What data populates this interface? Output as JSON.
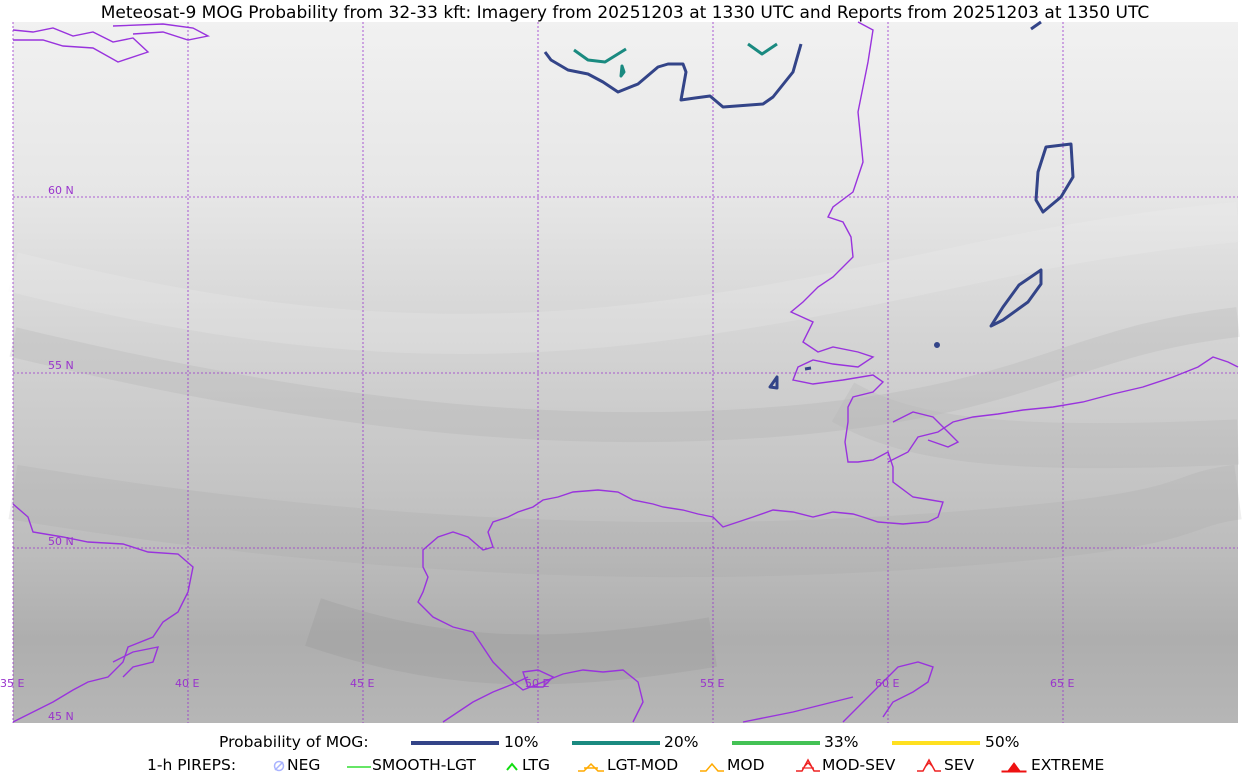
{
  "title": "Meteosat-9 MOG Probability from 32-33 kft: Imagery from 20251203 at 1330 UTC and Reports from 20251203 at 1350 UTC",
  "grid": {
    "lat_labels": [
      "60 N",
      "55 N",
      "50 N",
      "45 N"
    ],
    "lon_labels": [
      "35 E",
      "40 E",
      "45 E",
      "50 E",
      "55 E",
      "60 E",
      "65 E"
    ],
    "line_color": "#9933cc"
  },
  "coast_color": "#9933dd",
  "legend": {
    "probability": {
      "label": "Probability of MOG:",
      "items": [
        {
          "label": "10%",
          "color": "#334488"
        },
        {
          "label": "20%",
          "color": "#1a8a80"
        },
        {
          "label": "33%",
          "color": "#44c255"
        },
        {
          "label": "50%",
          "color": "#ffe020"
        }
      ]
    },
    "pireps": {
      "label": "1-h PIREPS:",
      "items": [
        {
          "label": "NEG",
          "color": "#aab4ff",
          "icon": "neg-icon"
        },
        {
          "label": "SMOOTH-LGT",
          "color": "#33dd33",
          "icon": "smooth-lgt-icon"
        },
        {
          "label": "LTG",
          "color": "#11dd11",
          "icon": "ltg-icon"
        },
        {
          "label": "LGT-MOD",
          "color": "#ffaa00",
          "icon": "lgt-mod-icon"
        },
        {
          "label": "MOD",
          "color": "#ffaa00",
          "icon": "mod-icon"
        },
        {
          "label": "MOD-SEV",
          "color": "#ee2222",
          "icon": "mod-sev-icon"
        },
        {
          "label": "SEV",
          "color": "#ee2222",
          "icon": "sev-icon"
        },
        {
          "label": "EXTREME",
          "color": "#ee1111",
          "icon": "extreme-icon"
        }
      ]
    }
  }
}
